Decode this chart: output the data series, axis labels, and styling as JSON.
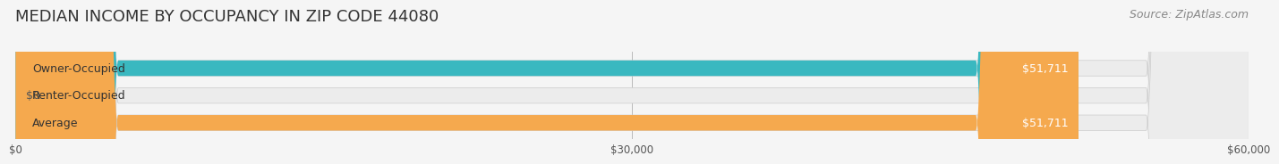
{
  "title": "MEDIAN INCOME BY OCCUPANCY IN ZIP CODE 44080",
  "source": "Source: ZipAtlas.com",
  "categories": [
    "Owner-Occupied",
    "Renter-Occupied",
    "Average"
  ],
  "values": [
    51711,
    0,
    51711
  ],
  "bar_colors": [
    "#3ab8c0",
    "#c8afd4",
    "#f5a94e"
  ],
  "bar_labels": [
    "$51,711",
    "$0",
    "$51,711"
  ],
  "xlim": [
    0,
    60000
  ],
  "xticks": [
    0,
    30000,
    60000
  ],
  "xtick_labels": [
    "$0",
    "$30,000",
    "$60,000"
  ],
  "background_color": "#f5f5f5",
  "bar_bg_color": "#ececec",
  "title_fontsize": 13,
  "source_fontsize": 9,
  "label_fontsize": 9,
  "bar_height": 0.55,
  "bar_label_color": "#ffffff",
  "zero_label_color": "#555555"
}
